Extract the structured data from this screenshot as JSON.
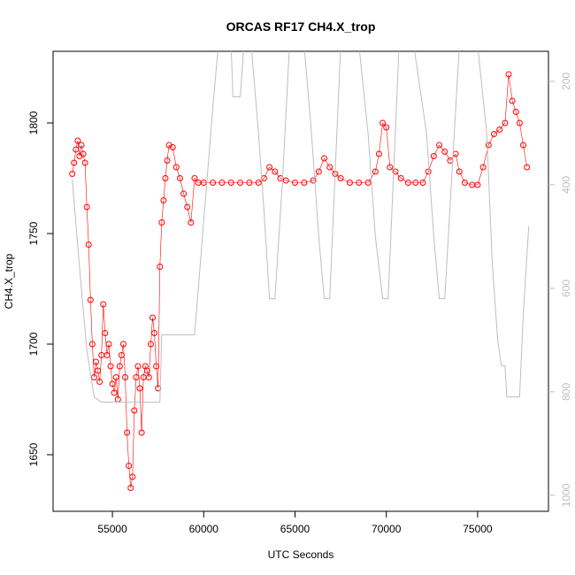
{
  "chart_data": {
    "type": "scatter",
    "title": "ORCAS RF17 CH4.X_trop",
    "x_label": "UTC Seconds",
    "y_label": "CH4.X_trop",
    "xlim": [
      51750,
      78880
    ],
    "ylim": [
      1624.4,
      1832.4
    ],
    "y2lim": [
      1031,
      142
    ],
    "xticks": [
      55000,
      60000,
      65000,
      70000,
      75000
    ],
    "yticks": [
      1650,
      1700,
      1750,
      1800
    ],
    "y2ticks": [
      200,
      400,
      600,
      800,
      1000
    ],
    "series": [
      {
        "color": "#ff0000",
        "marker": "open-circle",
        "x": [
          52800,
          52900,
          53000,
          53100,
          53200,
          53300,
          53400,
          53500,
          53600,
          53700,
          53800,
          53900,
          54000,
          54100,
          54200,
          54300,
          54400,
          54500,
          54600,
          54700,
          54800,
          54900,
          55000,
          55100,
          55200,
          55300,
          55400,
          55500,
          55600,
          55700,
          55800,
          55900,
          56000,
          56100,
          56200,
          56300,
          56400,
          56500,
          56600,
          56700,
          56800,
          56900,
          57000,
          57100,
          57200,
          57300,
          57400,
          57500,
          57600,
          57700,
          57800,
          57900,
          58000,
          58100,
          58300,
          58500,
          58700,
          58900,
          59100,
          59300,
          59500,
          59700,
          60000,
          60500,
          61000,
          61500,
          62000,
          62500,
          63000,
          63300,
          63600,
          63900,
          64200,
          64500,
          65000,
          65500,
          66000,
          66300,
          66600,
          66900,
          67200,
          67500,
          68000,
          68500,
          69000,
          69400,
          69600,
          69800,
          70000,
          70200,
          70500,
          70800,
          71200,
          71600,
          72000,
          72300,
          72600,
          72900,
          73200,
          73500,
          73800,
          74000,
          74300,
          74700,
          75000,
          75300,
          75600,
          75900,
          76200,
          76500,
          76700,
          76900,
          77100,
          77300,
          77500,
          77700
        ],
        "values": [
          1777,
          1782,
          1788,
          1792,
          1785,
          1790,
          1786,
          1782,
          1762,
          1745,
          1720,
          1700,
          1685,
          1692,
          1688,
          1683,
          1695,
          1718,
          1705,
          1695,
          1700,
          1690,
          1682,
          1678,
          1685,
          1675,
          1690,
          1695,
          1700,
          1685,
          1660,
          1645,
          1635,
          1640,
          1670,
          1685,
          1690,
          1680,
          1660,
          1685,
          1690,
          1688,
          1685,
          1700,
          1712,
          1705,
          1690,
          1680,
          1735,
          1755,
          1765,
          1775,
          1783,
          1790,
          1789,
          1780,
          1775,
          1768,
          1762,
          1755,
          1775,
          1773,
          1773,
          1773,
          1773,
          1773,
          1773,
          1773,
          1773,
          1775,
          1780,
          1778,
          1775,
          1774,
          1773,
          1773,
          1774,
          1778,
          1784,
          1780,
          1777,
          1775,
          1773,
          1773,
          1773,
          1778,
          1786,
          1800,
          1798,
          1780,
          1778,
          1775,
          1773,
          1773,
          1773,
          1778,
          1785,
          1790,
          1787,
          1783,
          1786,
          1778,
          1773,
          1772,
          1772,
          1780,
          1790,
          1795,
          1797,
          1800,
          1822,
          1810,
          1805,
          1800,
          1790,
          1780
        ]
      },
      {
        "color": "#bebebe",
        "axis": "y2",
        "x": [
          52800,
          53200,
          53600,
          54000,
          54400,
          55000,
          56000,
          57000,
          57600,
          57700,
          58000,
          59500,
          60000,
          60500,
          60800,
          61500,
          61600,
          62000,
          62200,
          62600,
          63000,
          63300,
          63600,
          63900,
          64300,
          64700,
          65500,
          65900,
          66300,
          66600,
          66900,
          67500,
          68500,
          69000,
          69400,
          69800,
          70100,
          70700,
          71500,
          72200,
          72600,
          72900,
          73200,
          74000,
          75000,
          75500,
          75800,
          76100,
          76300,
          76500,
          76600,
          77300,
          77500,
          77800
        ],
        "values": [
          390,
          560,
          720,
          810,
          820,
          820,
          820,
          820,
          820,
          690,
          690,
          690,
          470,
          250,
          130,
          130,
          230,
          230,
          130,
          130,
          300,
          450,
          620,
          620,
          400,
          130,
          130,
          300,
          500,
          620,
          620,
          130,
          130,
          300,
          500,
          620,
          620,
          130,
          130,
          300,
          500,
          620,
          620,
          130,
          130,
          300,
          550,
          700,
          750,
          750,
          810,
          810,
          650,
          480
        ]
      }
    ]
  }
}
